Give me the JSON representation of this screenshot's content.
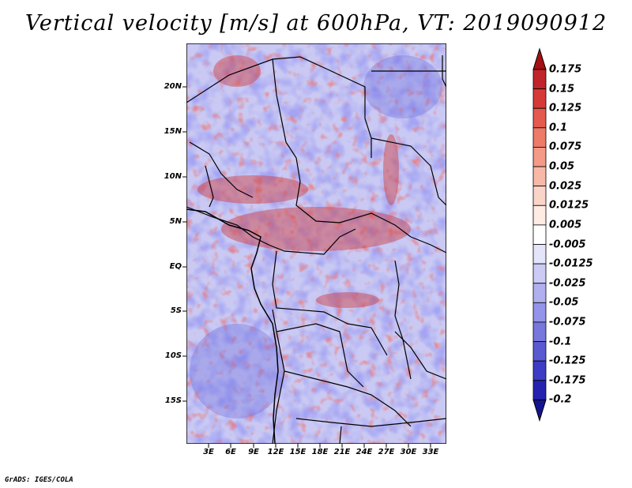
{
  "title": "Vertical velocity [m/s] at 600hPa, VT: 2019090912",
  "footer": "GrADS: IGES/COLA",
  "map": {
    "lat_labels": [
      "20N",
      "15N",
      "10N",
      "5N",
      "EQ",
      "5S",
      "10S",
      "15S"
    ],
    "lon_labels": [
      "3E",
      "6E",
      "9E",
      "12E",
      "15E",
      "18E",
      "21E",
      "24E",
      "27E",
      "30E",
      "33E"
    ]
  },
  "colorbar": {
    "labels": [
      "0.175",
      "0.15",
      "0.125",
      "0.1",
      "0.075",
      "0.05",
      "0.025",
      "0.0125",
      "0.005",
      "-0.005",
      "-0.0125",
      "-0.025",
      "-0.05",
      "-0.075",
      "-0.1",
      "-0.125",
      "-0.175",
      "-0.2"
    ],
    "colors": [
      "#a50f15",
      "#c0252b",
      "#d63a36",
      "#e55a4e",
      "#ee7a68",
      "#f49a87",
      "#f8b8a8",
      "#fbd4c8",
      "#fdebe4",
      "#ffffff",
      "#e4e4fb",
      "#cbcbf6",
      "#b0b0f0",
      "#9494e8",
      "#7777de",
      "#5959d2",
      "#3c3cc4",
      "#2323b0",
      "#14148f"
    ]
  }
}
